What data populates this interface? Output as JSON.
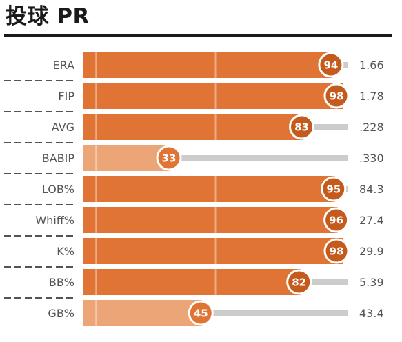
{
  "title": "投球 PR",
  "colors": {
    "bar_high": "#e07434",
    "bar_low": "#eba576",
    "circle_high": "#c45a1c",
    "circle_low": "#e07434",
    "track": "#cccccc",
    "divider": "#1a1a1a"
  },
  "chart_data": {
    "type": "bar",
    "orientation": "horizontal",
    "title": "投球 PR",
    "xlim": [
      0,
      100
    ],
    "categories": [
      "ERA",
      "FIP",
      "AVG",
      "BABIP",
      "LOB%",
      "Whiff%",
      "K%",
      "BB%",
      "GB%"
    ],
    "percentiles": [
      94,
      98,
      83,
      33,
      95,
      96,
      98,
      82,
      45
    ],
    "stat_values": [
      "1.66",
      "1.78",
      ".228",
      ".330",
      "84.3",
      "27.4",
      "29.9",
      "5.39",
      "43.4"
    ]
  }
}
